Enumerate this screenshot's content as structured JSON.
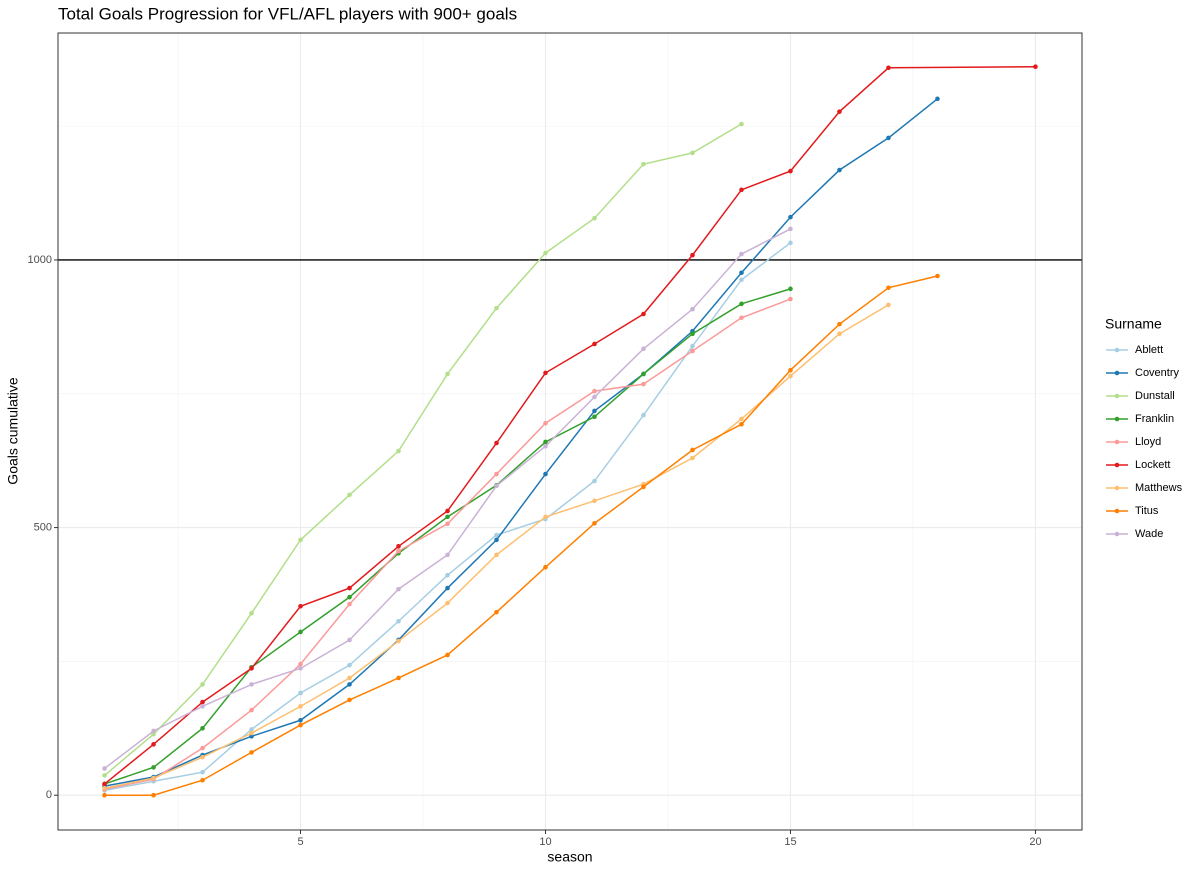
{
  "chart_data": {
    "type": "line",
    "title": "Total Goals Progression for VFL/AFL players with 900+ goals",
    "x_label": "season",
    "y_label": "Goals cumulative",
    "legend_title": "Surname",
    "legend": "right",
    "grid": true,
    "xlim": [
      0.05,
      20.95
    ],
    "xticks": [
      5,
      10,
      15,
      20
    ],
    "xminor": [
      2.5,
      7.5,
      12.5,
      17.5
    ],
    "ylim": [
      -65,
      1424
    ],
    "yticks": [
      0,
      500,
      1000
    ],
    "yminor": [
      250,
      750,
      1250
    ],
    "hline": 1000,
    "series": [
      {
        "name": "Ablett",
        "color": "#a6cee3",
        "x": [
          1,
          2,
          3,
          4,
          5,
          6,
          7,
          8,
          9,
          10,
          11,
          12,
          13,
          14,
          15
        ],
        "values": [
          9,
          26,
          43,
          123,
          191,
          243,
          325,
          411,
          486,
          516,
          587,
          710,
          839,
          963,
          1032
        ]
      },
      {
        "name": "Coventry",
        "color": "#1f78b4",
        "x": [
          1,
          2,
          3,
          4,
          5,
          6,
          7,
          8,
          9,
          10,
          11,
          12,
          13,
          14,
          15,
          16,
          17,
          18
        ],
        "values": [
          17,
          34,
          75,
          110,
          140,
          207,
          290,
          387,
          477,
          600,
          718,
          787,
          867,
          976,
          1080,
          1168,
          1228,
          1301
        ]
      },
      {
        "name": "Dunstall",
        "color": "#b2df8a",
        "x": [
          1,
          2,
          3,
          4,
          5,
          6,
          7,
          8,
          9,
          10,
          11,
          12,
          13,
          14
        ],
        "values": [
          37,
          114,
          207,
          340,
          477,
          561,
          643,
          787,
          910,
          1013,
          1078,
          1179,
          1200,
          1254
        ]
      },
      {
        "name": "Franklin",
        "color": "#33a02c",
        "x": [
          1,
          2,
          3,
          4,
          5,
          6,
          7,
          8,
          9,
          10,
          11,
          12,
          13,
          14,
          15
        ],
        "values": [
          21,
          52,
          125,
          239,
          305,
          370,
          452,
          520,
          579,
          660,
          707,
          787,
          862,
          918,
          946
        ]
      },
      {
        "name": "Lloyd",
        "color": "#fb9a99",
        "x": [
          1,
          2,
          3,
          4,
          5,
          6,
          7,
          8,
          9,
          10,
          11,
          12,
          13,
          14,
          15
        ],
        "values": [
          11,
          30,
          88,
          159,
          245,
          357,
          456,
          507,
          600,
          695,
          755,
          768,
          830,
          892,
          927
        ]
      },
      {
        "name": "Lockett",
        "color": "#e31a1c",
        "x": [
          1,
          2,
          3,
          4,
          5,
          6,
          7,
          8,
          9,
          10,
          11,
          12,
          13,
          14,
          15,
          16,
          17,
          20
        ],
        "values": [
          21,
          95,
          174,
          237,
          353,
          387,
          465,
          531,
          658,
          789,
          843,
          899,
          1009,
          1131,
          1166,
          1277,
          1359,
          1361
        ]
      },
      {
        "name": "Matthews",
        "color": "#fdbf6f",
        "x": [
          1,
          2,
          3,
          4,
          5,
          6,
          7,
          8,
          9,
          10,
          11,
          12,
          13,
          14,
          15,
          16,
          17
        ],
        "values": [
          13,
          32,
          71,
          116,
          166,
          219,
          288,
          359,
          449,
          520,
          550,
          581,
          630,
          703,
          783,
          862,
          916
        ]
      },
      {
        "name": "Titus",
        "color": "#ff7f00",
        "x": [
          1,
          2,
          3,
          4,
          5,
          6,
          7,
          8,
          9,
          10,
          11,
          12,
          13,
          14,
          15,
          16,
          17,
          18
        ],
        "values": [
          0,
          0,
          28,
          80,
          131,
          178,
          219,
          262,
          342,
          426,
          508,
          576,
          645,
          693,
          794,
          880,
          948,
          970
        ]
      },
      {
        "name": "Wade",
        "color": "#cab2d6",
        "x": [
          1,
          2,
          3,
          4,
          5,
          6,
          7,
          8,
          9,
          10,
          11,
          12,
          13,
          14,
          15
        ],
        "values": [
          50,
          120,
          166,
          207,
          237,
          290,
          385,
          449,
          578,
          652,
          744,
          834,
          908,
          1011,
          1058
        ]
      }
    ]
  }
}
